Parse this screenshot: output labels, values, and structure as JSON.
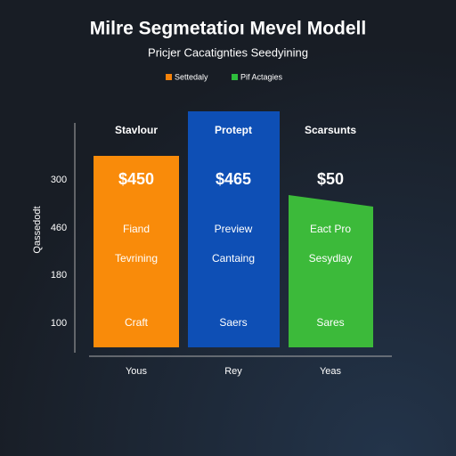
{
  "header": {
    "title": "Milre Segmetatioı Mevel Modell",
    "subtitle": "Pricjer Cacatignties Seedyining"
  },
  "legend": [
    {
      "label": "Settedaly",
      "color": "#f5820a"
    },
    {
      "label": "Pif Actagies",
      "color": "#2ebd3c"
    }
  ],
  "axis": {
    "label": "Qassedodt",
    "ticks": [
      "300",
      "460",
      "180",
      "100"
    ]
  },
  "columns": [
    {
      "heading": "Stavlour",
      "price": "$450",
      "lines": [
        "Fiand",
        "Tevrining"
      ],
      "footer": "Craft",
      "category": "Yous",
      "color": "#f98b0a"
    },
    {
      "heading": "Protept",
      "price": "$465",
      "lines": [
        "Preview",
        "Cantaing"
      ],
      "footer": "Saers",
      "category": "Rey",
      "color": "#0e4fb5"
    },
    {
      "heading": "Scarsunts",
      "price": "$50",
      "lines": [
        "Eact Pro",
        "Sesydlay"
      ],
      "footer": "Sares",
      "category": "Yeas",
      "color": "#3cba3a"
    }
  ]
}
